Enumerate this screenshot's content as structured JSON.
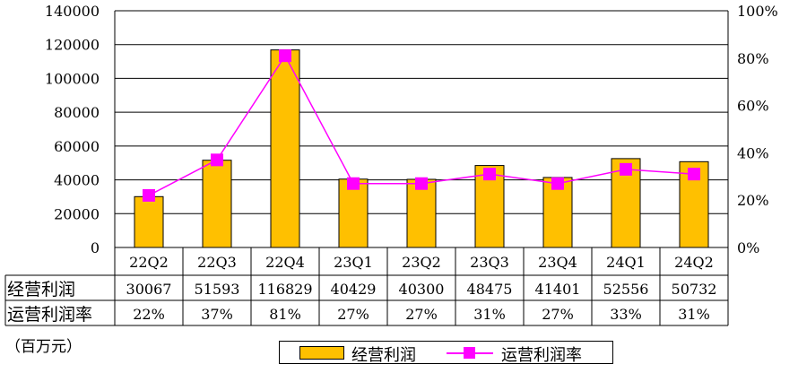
{
  "chart_data": {
    "type": "bar",
    "categories": [
      "22Q2",
      "22Q3",
      "22Q4",
      "23Q1",
      "23Q2",
      "23Q3",
      "23Q4",
      "24Q1",
      "24Q2"
    ],
    "series": [
      {
        "name": "经营利润",
        "type": "bar",
        "axis": "left",
        "color": "#FFC000",
        "values": [
          30067,
          51593,
          116829,
          40429,
          40300,
          48475,
          41401,
          52556,
          50732
        ]
      },
      {
        "name": "运营利润率",
        "type": "line",
        "axis": "right",
        "color": "#FF00FF",
        "values": [
          22,
          37,
          81,
          27,
          27,
          31,
          27,
          33,
          31
        ],
        "labels": [
          "22%",
          "37%",
          "81%",
          "27%",
          "27%",
          "31%",
          "27%",
          "33%",
          "31%"
        ]
      }
    ],
    "y_left": {
      "min": 0,
      "max": 140000,
      "ticks": [
        "0",
        "20000",
        "40000",
        "60000",
        "80000",
        "100000",
        "120000",
        "140000"
      ]
    },
    "y_right": {
      "min": 0,
      "max": 100,
      "ticks": [
        "0%",
        "20%",
        "40%",
        "60%",
        "80%",
        "100%"
      ]
    },
    "grid": true,
    "legend": "bottom",
    "data_table": true,
    "unit": "（百万元）"
  }
}
